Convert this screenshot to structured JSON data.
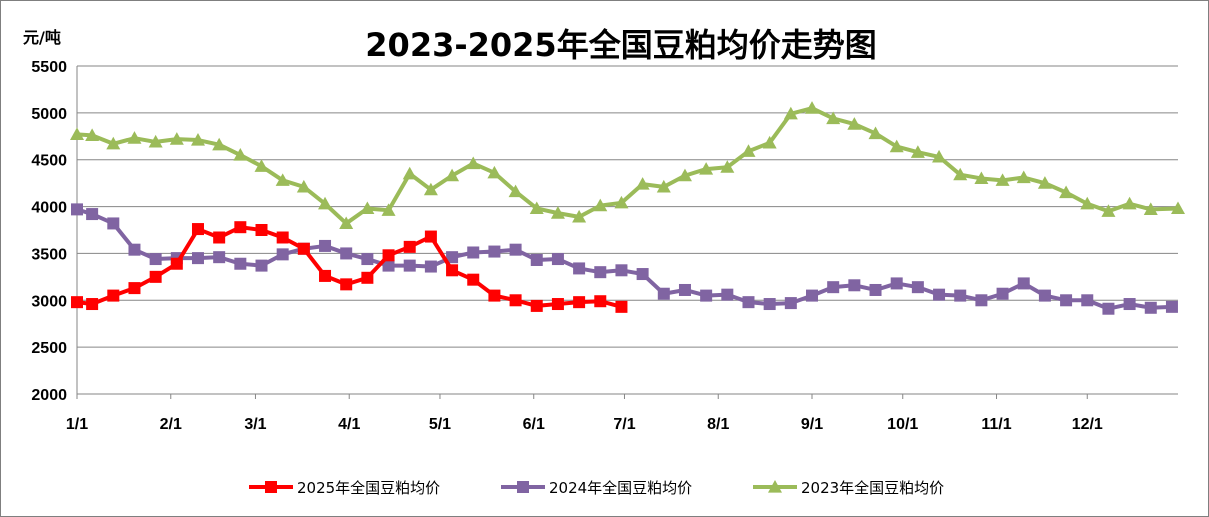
{
  "chart_data": {
    "type": "line",
    "title": "2023-2025年全国豆粕均价走势图",
    "ylabel": "元/吨",
    "xlabel": "",
    "ylim": [
      2000,
      5500
    ],
    "yticks": [
      2000,
      2500,
      3000,
      3500,
      4000,
      4500,
      5000,
      5500
    ],
    "xlim": [
      1,
      365
    ],
    "xticks": [
      {
        "label": "1/1",
        "day": 1
      },
      {
        "label": "2/1",
        "day": 32
      },
      {
        "label": "3/1",
        "day": 60
      },
      {
        "label": "4/1",
        "day": 91
      },
      {
        "label": "5/1",
        "day": 121
      },
      {
        "label": "6/1",
        "day": 152
      },
      {
        "label": "7/1",
        "day": 182
      },
      {
        "label": "8/1",
        "day": 213
      },
      {
        "label": "9/1",
        "day": 244
      },
      {
        "label": "10/1",
        "day": 274
      },
      {
        "label": "11/1",
        "day": 305
      },
      {
        "label": "12/1",
        "day": 335
      }
    ],
    "grid": true,
    "legend_position": "bottom",
    "series": [
      {
        "name": "2025年全国豆粕均价",
        "color": "#ff0000",
        "marker": "square",
        "x": [
          1,
          6,
          13,
          20,
          27,
          34,
          41,
          48,
          55,
          62,
          69,
          76,
          83,
          90,
          97,
          104,
          111,
          118,
          125,
          132,
          139,
          146,
          153,
          160,
          167,
          174,
          181
        ],
        "y": [
          2980,
          2960,
          3050,
          3130,
          3250,
          3390,
          3760,
          3670,
          3780,
          3750,
          3670,
          3550,
          3260,
          3170,
          3240,
          3480,
          3570,
          3680,
          3320,
          3220,
          3050,
          3000,
          2940,
          2960,
          2980,
          2990,
          2930
        ]
      },
      {
        "name": "2024年全国豆粕均价",
        "color": "#8064a2",
        "marker": "square",
        "x": [
          1,
          6,
          13,
          20,
          27,
          34,
          41,
          48,
          55,
          62,
          69,
          76,
          83,
          90,
          97,
          104,
          111,
          118,
          125,
          132,
          139,
          146,
          153,
          160,
          167,
          174,
          181,
          188,
          195,
          202,
          209,
          216,
          223,
          230,
          237,
          244,
          251,
          258,
          265,
          272,
          279,
          286,
          293,
          300,
          307,
          314,
          321,
          328,
          335,
          342,
          349,
          356,
          363
        ],
        "y": [
          3970,
          3920,
          3820,
          3540,
          3440,
          3450,
          3450,
          3460,
          3390,
          3370,
          3490,
          3550,
          3580,
          3500,
          3440,
          3370,
          3370,
          3360,
          3460,
          3510,
          3520,
          3540,
          3430,
          3440,
          3340,
          3300,
          3320,
          3280,
          3070,
          3110,
          3050,
          3060,
          2980,
          2960,
          2970,
          3050,
          3140,
          3160,
          3110,
          3180,
          3140,
          3060,
          3050,
          3000,
          3070,
          3180,
          3050,
          3000,
          3000,
          2910,
          2960,
          2920,
          2930
        ]
      },
      {
        "name": "2023年全国豆粕均价",
        "color": "#9bbb59",
        "marker": "triangle",
        "x": [
          1,
          6,
          13,
          20,
          27,
          34,
          41,
          48,
          55,
          62,
          69,
          76,
          83,
          90,
          97,
          104,
          111,
          118,
          125,
          132,
          139,
          146,
          153,
          160,
          167,
          174,
          181,
          188,
          195,
          202,
          209,
          216,
          223,
          230,
          237,
          244,
          251,
          258,
          265,
          272,
          279,
          286,
          293,
          300,
          307,
          314,
          321,
          328,
          335,
          342,
          349,
          356,
          365
        ],
        "y": [
          4770,
          4760,
          4670,
          4730,
          4690,
          4720,
          4710,
          4660,
          4550,
          4430,
          4280,
          4210,
          4030,
          3820,
          3980,
          3960,
          4350,
          4180,
          4330,
          4460,
          4360,
          4160,
          3980,
          3930,
          3890,
          4010,
          4040,
          4240,
          4210,
          4330,
          4400,
          4420,
          4590,
          4680,
          4990,
          5050,
          4940,
          4880,
          4780,
          4640,
          4580,
          4530,
          4340,
          4300,
          4280,
          4310,
          4250,
          4150,
          4030,
          3950,
          4030,
          3970,
          3980
        ]
      }
    ]
  }
}
